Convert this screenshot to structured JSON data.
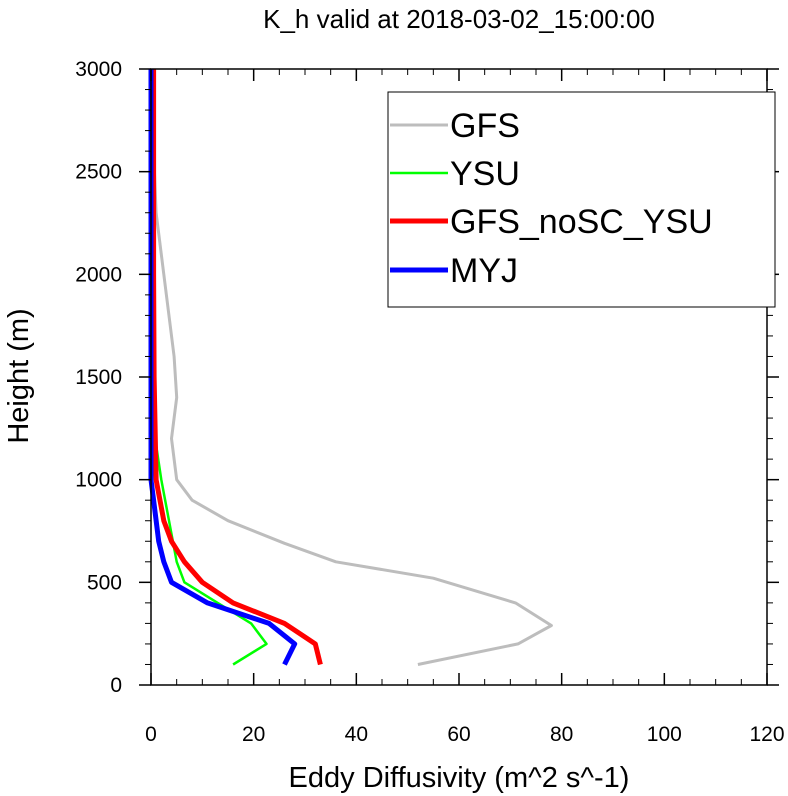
{
  "chart_data": {
    "type": "line",
    "title": "K_h valid at 2018-03-02_15:00:00",
    "xlabel": "Eddy Diffusivity (m^2 s^-1)",
    "ylabel": "Height (m)",
    "xlim": [
      0,
      120
    ],
    "ylim": [
      0,
      3000
    ],
    "xticks": [
      0,
      20,
      40,
      60,
      80,
      100,
      120
    ],
    "yticks": [
      0,
      500,
      1000,
      1500,
      2000,
      2500,
      3000
    ],
    "xticks_text": [
      "0",
      "20",
      "40",
      "60",
      "80",
      "100",
      "120"
    ],
    "yticks_text": [
      "0",
      "500",
      "1000",
      "1500",
      "2000",
      "2500",
      "3000"
    ],
    "grid": false,
    "legend": "top-right",
    "series": [
      {
        "name": "GFS",
        "color": "#bdbdbd",
        "points": [
          [
            52,
            100
          ],
          [
            71.5,
            200
          ],
          [
            78,
            290
          ],
          [
            71,
            400
          ],
          [
            55,
            520
          ],
          [
            36,
            600
          ],
          [
            26,
            690
          ],
          [
            15,
            800
          ],
          [
            8,
            900
          ],
          [
            5,
            1000
          ],
          [
            4,
            1200
          ],
          [
            5,
            1400
          ],
          [
            4.5,
            1600
          ],
          [
            2.5,
            2000
          ],
          [
            1,
            2300
          ],
          [
            0.5,
            2600
          ],
          [
            0.5,
            3000
          ]
        ]
      },
      {
        "name": "YSU",
        "color": "#00ff00",
        "points": [
          [
            16,
            100
          ],
          [
            22.5,
            200
          ],
          [
            19.5,
            300
          ],
          [
            13,
            400
          ],
          [
            6.5,
            500
          ],
          [
            5,
            600
          ],
          [
            3.5,
            800
          ],
          [
            2,
            1000
          ],
          [
            0.5,
            1250
          ],
          [
            0.2,
            1500
          ],
          [
            0.1,
            2000
          ],
          [
            0,
            2500
          ],
          [
            0,
            3000
          ]
        ]
      },
      {
        "name": "GFS_noSC_YSU",
        "color": "#ff0000",
        "points": [
          [
            33,
            100
          ],
          [
            32,
            200
          ],
          [
            26,
            300
          ],
          [
            16,
            400
          ],
          [
            10,
            500
          ],
          [
            6.5,
            600
          ],
          [
            4,
            700
          ],
          [
            2.5,
            800
          ],
          [
            1,
            1000
          ],
          [
            0.6,
            1500
          ],
          [
            0.5,
            2000
          ],
          [
            0.5,
            2500
          ],
          [
            0.5,
            3000
          ]
        ]
      },
      {
        "name": "MYJ",
        "color": "#0000ff",
        "points": [
          [
            26,
            100
          ],
          [
            28,
            200
          ],
          [
            23,
            300
          ],
          [
            11,
            400
          ],
          [
            4,
            500
          ],
          [
            2.5,
            600
          ],
          [
            1.5,
            700
          ],
          [
            0.5,
            900
          ],
          [
            0,
            1000
          ],
          [
            0,
            1500
          ],
          [
            0,
            2000
          ],
          [
            0,
            2500
          ],
          [
            0,
            3000
          ]
        ]
      }
    ]
  }
}
